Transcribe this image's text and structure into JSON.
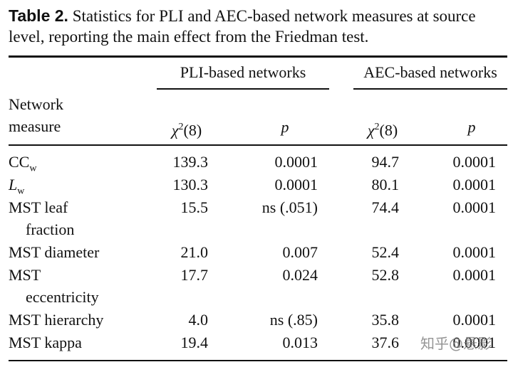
{
  "caption": {
    "label": "Table 2.",
    "text": "Statistics for PLI and AEC-based network measures at source level, reporting the main effect from the Friedman test."
  },
  "table": {
    "groups": [
      "PLI-based networks",
      "AEC-based networks"
    ],
    "columns": {
      "measure": [
        "Network",
        "measure"
      ],
      "chi": {
        "symbol": "χ",
        "sup": "2",
        "df": "(8)"
      },
      "p": "p"
    },
    "rows": [
      {
        "name": [
          "CC"
        ],
        "sub": "w",
        "cells": [
          "139.3",
          "0.0001",
          "94.7",
          "0.0001"
        ]
      },
      {
        "name": [
          "L"
        ],
        "sub": "w",
        "italic": true,
        "cells": [
          "130.3",
          "0.0001",
          "80.1",
          "0.0001"
        ]
      },
      {
        "name": [
          "MST leaf",
          "fraction"
        ],
        "cells": [
          "15.5",
          "ns (.051)",
          "74.4",
          "0.0001"
        ]
      },
      {
        "name": [
          "MST diameter"
        ],
        "cells": [
          "21.0",
          "0.007",
          "52.4",
          "0.0001"
        ]
      },
      {
        "name": [
          "MST",
          "eccentricity"
        ],
        "cells": [
          "17.7",
          "0.024",
          "52.8",
          "0.0001"
        ]
      },
      {
        "name": [
          "MST hierarchy"
        ],
        "cells": [
          "4.0",
          "ns (.85)",
          "35.8",
          "0.0001"
        ]
      },
      {
        "name": [
          "MST kappa"
        ],
        "cells": [
          "19.4",
          "0.013",
          "37.6",
          "0.0001"
        ]
      }
    ]
  },
  "watermark": "知乎@悬影"
}
